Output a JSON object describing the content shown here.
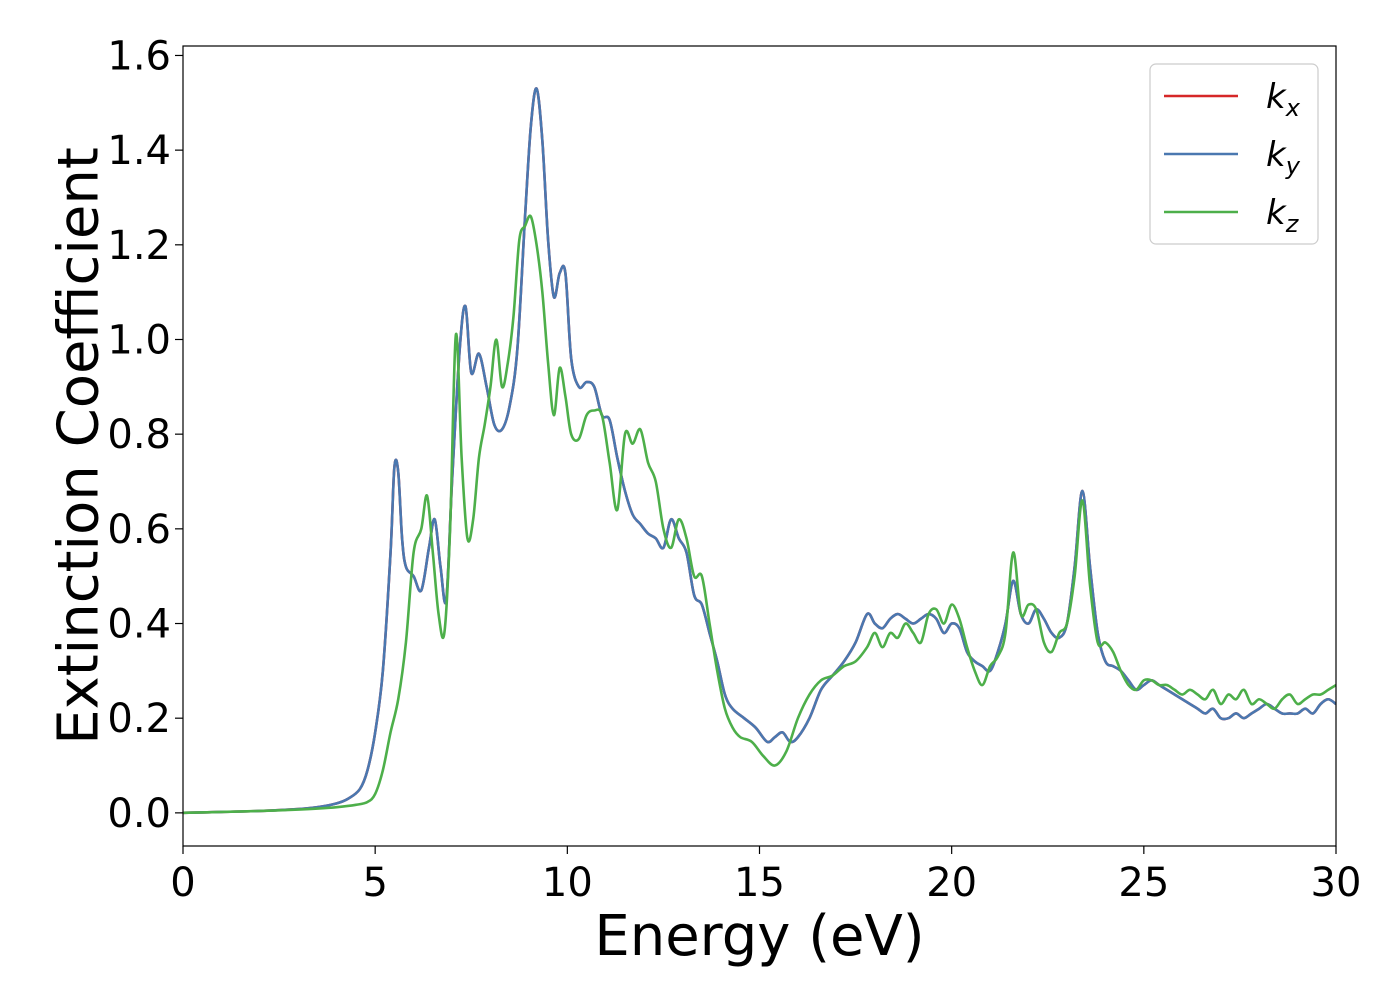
{
  "chart_data": {
    "type": "line",
    "title": "",
    "xlabel": "Energy (eV)",
    "ylabel": "Extinction Coefficient",
    "xlim": [
      0,
      30
    ],
    "ylim": [
      -0.07,
      1.62
    ],
    "x_ticks": [
      0,
      5,
      10,
      15,
      20,
      25,
      30
    ],
    "x_tick_labels": [
      "0",
      "5",
      "10",
      "15",
      "20",
      "25",
      "30"
    ],
    "y_ticks": [
      0.0,
      0.2,
      0.4,
      0.6,
      0.8,
      1.0,
      1.2,
      1.4,
      1.6
    ],
    "y_tick_labels": [
      "0.0",
      "0.2",
      "0.4",
      "0.6",
      "0.8",
      "1.0",
      "1.2",
      "1.4",
      "1.6"
    ],
    "grid": false,
    "legend_position": "top-right",
    "series": [
      {
        "name": "k_x",
        "legend_base": "k",
        "legend_sub": "x",
        "color": "#d62728",
        "x": [
          0,
          1,
          2,
          3,
          3.5,
          4,
          4.3,
          4.6,
          4.8,
          5.0,
          5.2,
          5.4,
          5.5,
          5.6,
          5.7,
          5.8,
          6.0,
          6.2,
          6.4,
          6.55,
          6.7,
          6.85,
          7.0,
          7.2,
          7.35,
          7.5,
          7.7,
          7.9,
          8.1,
          8.3,
          8.5,
          8.7,
          8.9,
          9.05,
          9.2,
          9.35,
          9.5,
          9.65,
          9.8,
          9.95,
          10.1,
          10.3,
          10.5,
          10.7,
          10.9,
          11.1,
          11.3,
          11.5,
          11.7,
          11.9,
          12.1,
          12.3,
          12.5,
          12.7,
          12.9,
          13.1,
          13.3,
          13.5,
          13.7,
          13.9,
          14.1,
          14.3,
          14.6,
          14.9,
          15.2,
          15.4,
          15.6,
          15.8,
          16.0,
          16.3,
          16.6,
          16.9,
          17.2,
          17.5,
          17.8,
          18.0,
          18.2,
          18.4,
          18.6,
          18.8,
          19.0,
          19.2,
          19.4,
          19.6,
          19.8,
          20.0,
          20.2,
          20.4,
          20.6,
          20.8,
          21.0,
          21.2,
          21.4,
          21.6,
          21.8,
          22.0,
          22.2,
          22.4,
          22.6,
          22.8,
          23.0,
          23.2,
          23.4,
          23.6,
          23.8,
          24.0,
          24.2,
          24.4,
          24.6,
          24.8,
          25.0,
          25.2,
          25.4,
          25.6,
          25.8,
          26.0,
          26.2,
          26.4,
          26.6,
          26.8,
          27.0,
          27.2,
          27.4,
          27.6,
          27.8,
          28.0,
          28.2,
          28.4,
          28.6,
          28.8,
          29.0,
          29.2,
          29.4,
          29.6,
          29.8,
          30.0
        ],
        "y": [
          0.0,
          0.002,
          0.004,
          0.008,
          0.012,
          0.02,
          0.03,
          0.05,
          0.09,
          0.17,
          0.3,
          0.55,
          0.73,
          0.72,
          0.58,
          0.52,
          0.5,
          0.47,
          0.56,
          0.62,
          0.52,
          0.45,
          0.7,
          0.98,
          1.07,
          0.93,
          0.97,
          0.9,
          0.82,
          0.81,
          0.86,
          0.98,
          1.26,
          1.45,
          1.53,
          1.42,
          1.21,
          1.09,
          1.14,
          1.14,
          0.96,
          0.9,
          0.91,
          0.9,
          0.84,
          0.83,
          0.75,
          0.68,
          0.63,
          0.61,
          0.59,
          0.58,
          0.56,
          0.62,
          0.58,
          0.55,
          0.46,
          0.44,
          0.38,
          0.32,
          0.25,
          0.22,
          0.2,
          0.18,
          0.15,
          0.16,
          0.17,
          0.15,
          0.16,
          0.2,
          0.26,
          0.29,
          0.32,
          0.36,
          0.42,
          0.4,
          0.39,
          0.41,
          0.42,
          0.41,
          0.4,
          0.41,
          0.42,
          0.41,
          0.38,
          0.4,
          0.39,
          0.34,
          0.32,
          0.31,
          0.3,
          0.34,
          0.4,
          0.49,
          0.42,
          0.4,
          0.43,
          0.41,
          0.38,
          0.37,
          0.4,
          0.52,
          0.68,
          0.52,
          0.38,
          0.32,
          0.31,
          0.3,
          0.28,
          0.26,
          0.27,
          0.28,
          0.27,
          0.26,
          0.25,
          0.24,
          0.23,
          0.22,
          0.21,
          0.22,
          0.2,
          0.2,
          0.21,
          0.2,
          0.21,
          0.22,
          0.23,
          0.22,
          0.21,
          0.21,
          0.21,
          0.22,
          0.21,
          0.23,
          0.24,
          0.23
        ]
      },
      {
        "name": "k_y",
        "legend_base": "k",
        "legend_sub": "y",
        "color": "#4a78b0",
        "x": [
          0,
          1,
          2,
          3,
          3.5,
          4,
          4.3,
          4.6,
          4.8,
          5.0,
          5.2,
          5.4,
          5.5,
          5.6,
          5.7,
          5.8,
          6.0,
          6.2,
          6.4,
          6.55,
          6.7,
          6.85,
          7.0,
          7.2,
          7.35,
          7.5,
          7.7,
          7.9,
          8.1,
          8.3,
          8.5,
          8.7,
          8.9,
          9.05,
          9.2,
          9.35,
          9.5,
          9.65,
          9.8,
          9.95,
          10.1,
          10.3,
          10.5,
          10.7,
          10.9,
          11.1,
          11.3,
          11.5,
          11.7,
          11.9,
          12.1,
          12.3,
          12.5,
          12.7,
          12.9,
          13.1,
          13.3,
          13.5,
          13.7,
          13.9,
          14.1,
          14.3,
          14.6,
          14.9,
          15.2,
          15.4,
          15.6,
          15.8,
          16.0,
          16.3,
          16.6,
          16.9,
          17.2,
          17.5,
          17.8,
          18.0,
          18.2,
          18.4,
          18.6,
          18.8,
          19.0,
          19.2,
          19.4,
          19.6,
          19.8,
          20.0,
          20.2,
          20.4,
          20.6,
          20.8,
          21.0,
          21.2,
          21.4,
          21.6,
          21.8,
          22.0,
          22.2,
          22.4,
          22.6,
          22.8,
          23.0,
          23.2,
          23.4,
          23.6,
          23.8,
          24.0,
          24.2,
          24.4,
          24.6,
          24.8,
          25.0,
          25.2,
          25.4,
          25.6,
          25.8,
          26.0,
          26.2,
          26.4,
          26.6,
          26.8,
          27.0,
          27.2,
          27.4,
          27.6,
          27.8,
          28.0,
          28.2,
          28.4,
          28.6,
          28.8,
          29.0,
          29.2,
          29.4,
          29.6,
          29.8,
          30.0
        ],
        "y": [
          0.0,
          0.002,
          0.004,
          0.008,
          0.012,
          0.02,
          0.03,
          0.05,
          0.09,
          0.17,
          0.3,
          0.55,
          0.73,
          0.72,
          0.58,
          0.52,
          0.5,
          0.47,
          0.56,
          0.62,
          0.52,
          0.45,
          0.7,
          0.98,
          1.07,
          0.93,
          0.97,
          0.9,
          0.82,
          0.81,
          0.86,
          0.98,
          1.26,
          1.45,
          1.53,
          1.42,
          1.21,
          1.09,
          1.14,
          1.14,
          0.96,
          0.9,
          0.91,
          0.9,
          0.84,
          0.83,
          0.75,
          0.68,
          0.63,
          0.61,
          0.59,
          0.58,
          0.56,
          0.62,
          0.58,
          0.55,
          0.46,
          0.44,
          0.38,
          0.32,
          0.25,
          0.22,
          0.2,
          0.18,
          0.15,
          0.16,
          0.17,
          0.15,
          0.16,
          0.2,
          0.26,
          0.29,
          0.32,
          0.36,
          0.42,
          0.4,
          0.39,
          0.41,
          0.42,
          0.41,
          0.4,
          0.41,
          0.42,
          0.41,
          0.38,
          0.4,
          0.39,
          0.34,
          0.32,
          0.31,
          0.3,
          0.34,
          0.4,
          0.49,
          0.42,
          0.4,
          0.43,
          0.41,
          0.38,
          0.37,
          0.4,
          0.52,
          0.68,
          0.52,
          0.38,
          0.32,
          0.31,
          0.3,
          0.28,
          0.26,
          0.27,
          0.28,
          0.27,
          0.26,
          0.25,
          0.24,
          0.23,
          0.22,
          0.21,
          0.22,
          0.2,
          0.2,
          0.21,
          0.2,
          0.21,
          0.22,
          0.23,
          0.22,
          0.21,
          0.21,
          0.21,
          0.22,
          0.21,
          0.23,
          0.24,
          0.23
        ]
      },
      {
        "name": "k_z",
        "legend_base": "k",
        "legend_sub": "z",
        "color": "#4daf4a",
        "x": [
          0,
          1,
          2,
          3,
          3.5,
          4,
          4.5,
          4.8,
          5.0,
          5.2,
          5.4,
          5.6,
          5.8,
          6.0,
          6.2,
          6.35,
          6.5,
          6.65,
          6.8,
          6.95,
          7.1,
          7.25,
          7.4,
          7.55,
          7.7,
          7.85,
          8.0,
          8.15,
          8.3,
          8.45,
          8.6,
          8.75,
          8.9,
          9.05,
          9.2,
          9.35,
          9.5,
          9.65,
          9.8,
          9.95,
          10.1,
          10.3,
          10.5,
          10.7,
          10.9,
          11.1,
          11.3,
          11.5,
          11.7,
          11.9,
          12.1,
          12.3,
          12.5,
          12.7,
          12.9,
          13.1,
          13.3,
          13.5,
          13.7,
          13.9,
          14.1,
          14.3,
          14.5,
          14.8,
          15.1,
          15.4,
          15.7,
          16.0,
          16.3,
          16.6,
          16.9,
          17.2,
          17.5,
          17.8,
          18.0,
          18.2,
          18.4,
          18.6,
          18.8,
          19.0,
          19.2,
          19.4,
          19.6,
          19.8,
          20.0,
          20.2,
          20.4,
          20.6,
          20.8,
          21.0,
          21.2,
          21.4,
          21.6,
          21.8,
          22.0,
          22.2,
          22.4,
          22.6,
          22.8,
          23.0,
          23.2,
          23.4,
          23.6,
          23.8,
          24.0,
          24.2,
          24.4,
          24.6,
          24.8,
          25.0,
          25.2,
          25.4,
          25.6,
          25.8,
          26.0,
          26.2,
          26.4,
          26.6,
          26.8,
          27.0,
          27.2,
          27.4,
          27.6,
          27.8,
          28.0,
          28.2,
          28.4,
          28.6,
          28.8,
          29.0,
          29.2,
          29.4,
          29.6,
          29.8,
          30.0
        ],
        "y": [
          0.0,
          0.002,
          0.004,
          0.007,
          0.009,
          0.012,
          0.017,
          0.023,
          0.04,
          0.09,
          0.17,
          0.24,
          0.36,
          0.55,
          0.6,
          0.67,
          0.55,
          0.42,
          0.38,
          0.6,
          1.01,
          0.75,
          0.58,
          0.62,
          0.75,
          0.82,
          0.9,
          1.0,
          0.9,
          0.95,
          1.05,
          1.21,
          1.24,
          1.26,
          1.2,
          1.1,
          0.95,
          0.84,
          0.94,
          0.88,
          0.8,
          0.79,
          0.84,
          0.85,
          0.84,
          0.74,
          0.64,
          0.8,
          0.78,
          0.81,
          0.74,
          0.7,
          0.6,
          0.56,
          0.62,
          0.58,
          0.5,
          0.5,
          0.4,
          0.3,
          0.22,
          0.18,
          0.16,
          0.15,
          0.12,
          0.1,
          0.13,
          0.2,
          0.25,
          0.28,
          0.29,
          0.31,
          0.32,
          0.35,
          0.38,
          0.35,
          0.38,
          0.37,
          0.4,
          0.38,
          0.36,
          0.42,
          0.43,
          0.4,
          0.44,
          0.41,
          0.35,
          0.3,
          0.27,
          0.31,
          0.33,
          0.38,
          0.55,
          0.42,
          0.44,
          0.43,
          0.36,
          0.34,
          0.38,
          0.4,
          0.5,
          0.66,
          0.48,
          0.36,
          0.36,
          0.34,
          0.3,
          0.27,
          0.26,
          0.28,
          0.28,
          0.27,
          0.27,
          0.26,
          0.25,
          0.26,
          0.25,
          0.24,
          0.26,
          0.23,
          0.25,
          0.24,
          0.26,
          0.23,
          0.24,
          0.23,
          0.22,
          0.24,
          0.25,
          0.23,
          0.24,
          0.25,
          0.25,
          0.26,
          0.27
        ]
      }
    ]
  }
}
